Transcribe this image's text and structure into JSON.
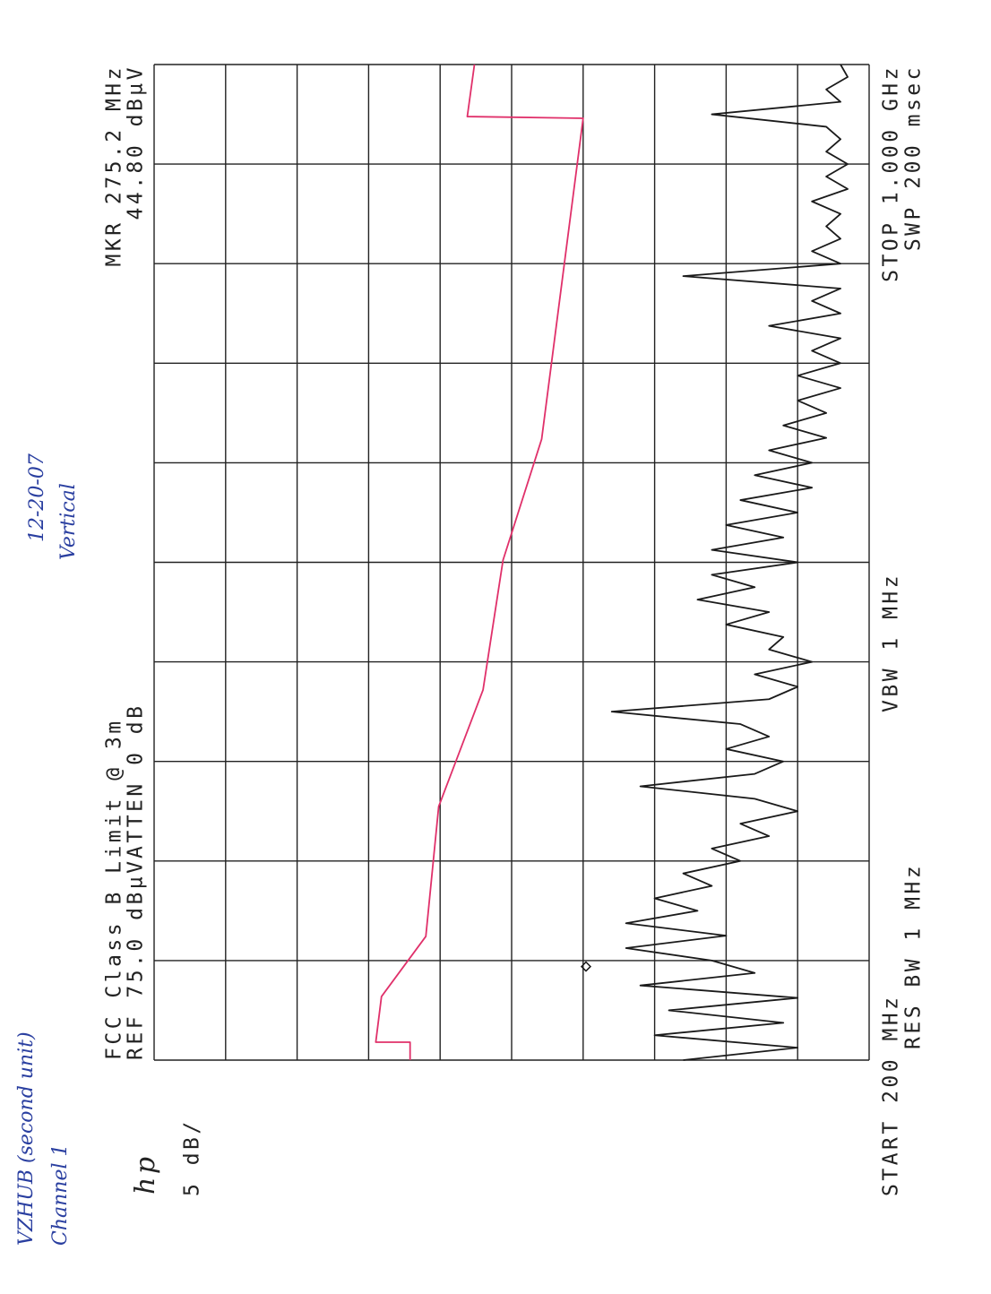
{
  "chart_data": {
    "type": "line",
    "title": "FCC Class B Limit @ 3m",
    "ref_label": "REF 75.0 dBµV",
    "atten_label": "ATTEN 0 dB",
    "scale_label": "5 dB/",
    "logo": "hp",
    "marker_label": "MKR 275.2 MHz",
    "marker_value_label": "44.80 dBµV",
    "marker": {
      "x": 275.2,
      "y": 44.8
    },
    "start_label": "START 200 MHz",
    "stop_label": "STOP 1.000 GHz",
    "rbw_label": "RES BW 1 MHz",
    "vbw_label": "VBW 1 MHz",
    "sweep_label": "SWP 200 msec",
    "annotations": [
      "VZHUB (second unit)",
      "Channel 1",
      "12-20-07",
      "Vertical"
    ],
    "xlim": [
      200,
      1000
    ],
    "ylim": [
      25,
      75
    ],
    "xticks": [
      200,
      280,
      360,
      440,
      520,
      600,
      680,
      760,
      840,
      920,
      1000
    ],
    "yticks": [
      25,
      30,
      35,
      40,
      45,
      50,
      55,
      60,
      65,
      70,
      75
    ],
    "grid": true,
    "series": [
      {
        "color": "#e0306a",
        "x": [
          200,
          214.4,
          214.4,
          251.1,
          299.4,
          403.8,
          497.4,
          601.8,
          699.0,
          956.8,
          958.2,
          1000
        ],
        "values": [
          57.1,
          57.1,
          59.5,
          59.1,
          56.0,
          55.1,
          52.0,
          50.6,
          47.9,
          45.0,
          53.1,
          52.6
        ]
      },
      {
        "color": "#1a1a1a",
        "x": [
          200,
          210,
          220,
          230,
          240,
          250,
          260,
          270,
          280,
          290,
          300,
          310,
          320,
          330,
          340,
          350,
          360,
          370,
          380,
          390,
          400,
          410,
          420,
          430,
          440,
          450,
          460,
          470,
          480,
          490,
          500,
          510,
          520,
          530,
          540,
          550,
          560,
          570,
          580,
          590,
          600,
          610,
          620,
          630,
          640,
          650,
          660,
          670,
          680,
          690,
          700,
          710,
          720,
          730,
          740,
          750,
          760,
          770,
          780,
          790,
          800,
          810,
          820,
          830,
          840,
          850,
          860,
          870,
          880,
          890,
          900,
          910,
          920,
          930,
          940,
          950,
          960,
          970,
          980,
          990,
          1000
        ],
        "values": [
          38,
          30,
          40,
          31,
          39,
          30,
          41,
          33,
          36,
          42,
          35,
          42,
          37,
          40,
          36,
          38,
          34,
          36,
          32,
          34,
          30,
          33,
          41,
          33,
          31,
          35,
          32,
          34,
          43,
          32,
          30,
          33,
          29,
          32,
          31,
          35,
          32,
          37,
          33,
          36,
          30,
          36,
          31,
          35,
          30,
          34,
          29,
          33,
          29,
          32,
          28,
          31,
          28,
          30,
          27,
          30,
          27,
          29,
          27,
          32,
          27,
          29,
          27,
          38,
          27,
          29,
          27,
          28,
          27,
          29,
          26.5,
          28,
          26.5,
          28,
          27,
          28,
          36,
          27,
          28,
          26.5,
          27
        ]
      }
    ]
  }
}
